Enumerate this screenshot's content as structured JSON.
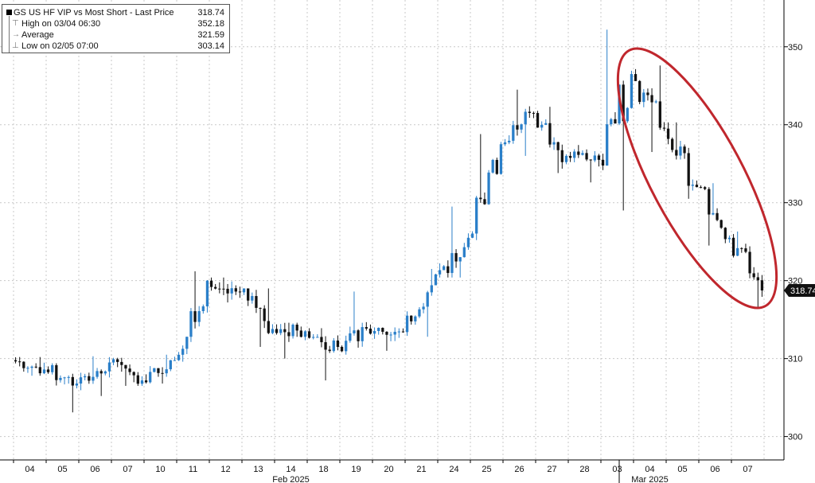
{
  "chart_data": {
    "type": "candlestick",
    "title": "GS US HF VIP vs Most Short - Last Price",
    "last_price": "318.74",
    "legend": [
      {
        "label": "High on 03/04 06:30",
        "value": "352.18"
      },
      {
        "label": "Average",
        "value": "321.59"
      },
      {
        "label": "Low on 02/05 07:00",
        "value": "303.14"
      }
    ],
    "ylim": [
      297,
      356
    ],
    "yticks": [
      300,
      310,
      320,
      330,
      340,
      350
    ],
    "x_labels": [
      "04",
      "05",
      "06",
      "07",
      "10",
      "11",
      "12",
      "13",
      "14",
      "18",
      "19",
      "20",
      "21",
      "24",
      "25",
      "26",
      "27",
      "28",
      "03",
      "04",
      "05",
      "06",
      "07"
    ],
    "month_labels": [
      {
        "label": "Feb 2025",
        "day_index": 8
      },
      {
        "label": "Mar 2025",
        "day_index": 19
      }
    ],
    "daily_ohlc": [
      [
        309.8,
        310.2,
        307.8,
        308.6
      ],
      [
        308.6,
        309.4,
        303.1,
        306.8
      ],
      [
        306.8,
        310.3,
        305.2,
        309.5
      ],
      [
        309.5,
        310.1,
        306.5,
        307.2
      ],
      [
        307.2,
        310.5,
        306.8,
        309.8
      ],
      [
        309.8,
        321.2,
        309.6,
        320.0
      ],
      [
        320.0,
        320.4,
        317.2,
        318.5
      ],
      [
        318.5,
        319.0,
        311.5,
        313.8
      ],
      [
        313.8,
        314.6,
        310.0,
        313.5
      ],
      [
        313.5,
        313.9,
        307.2,
        311.5
      ],
      [
        311.5,
        318.6,
        310.5,
        313.2
      ],
      [
        313.2,
        314.0,
        311.0,
        313.4
      ],
      [
        313.4,
        321.5,
        312.8,
        320.8
      ],
      [
        320.8,
        329.5,
        320.4,
        325.5
      ],
      [
        325.5,
        338.8,
        325.2,
        337.5
      ],
      [
        337.5,
        344.5,
        336.0,
        341.5
      ],
      [
        341.5,
        342.3,
        333.8,
        336.0
      ],
      [
        336.0,
        337.4,
        332.6,
        335.5
      ],
      [
        335.5,
        352.2,
        329.0,
        346.5
      ],
      [
        346.5,
        347.6,
        336.5,
        339.5
      ],
      [
        339.5,
        340.3,
        330.5,
        332.0
      ],
      [
        332.0,
        332.5,
        324.5,
        325.5
      ],
      [
        325.5,
        326.3,
        316.4,
        318.74
      ]
    ],
    "annotation": {
      "shape": "ellipse",
      "color": "#c0272d"
    },
    "colors": {
      "up": "#2a7fc9",
      "down": "#111111",
      "grid": "#c8c8c8",
      "annotation": "#c0272d"
    },
    "grid": true
  }
}
